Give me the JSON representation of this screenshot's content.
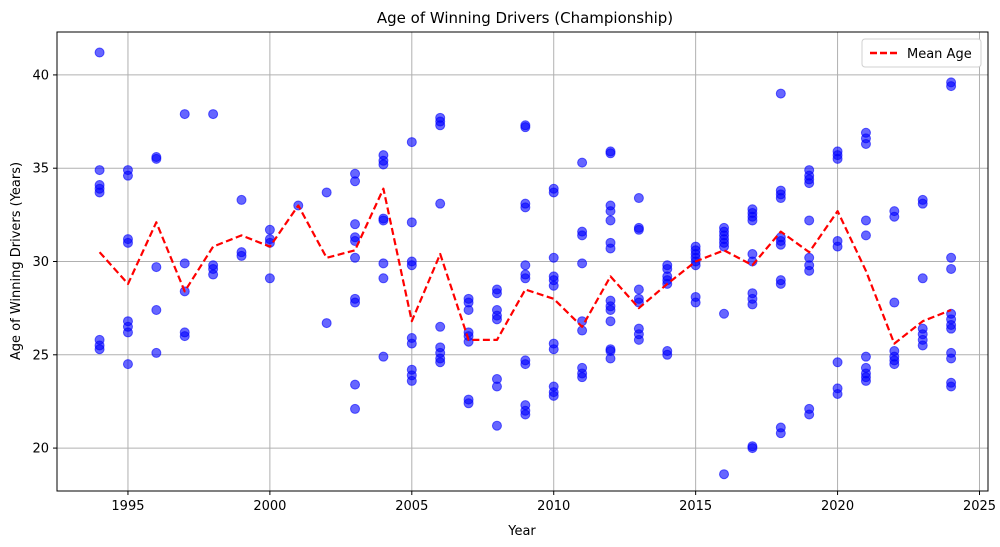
{
  "chart_data": {
    "type": "scatter",
    "title": "Age of Winning Drivers (Championship)",
    "xlabel": "Year",
    "ylabel": "Age of Winning Drivers (Years)",
    "xlim": [
      1992.5,
      2025.3
    ],
    "ylim": [
      17.7,
      42.3
    ],
    "xticks": [
      1995,
      2000,
      2005,
      2010,
      2015,
      2020,
      2025
    ],
    "yticks": [
      20,
      25,
      30,
      35,
      40
    ],
    "grid": true,
    "legend_position": "top-right",
    "colors": {
      "points": "#0000ff",
      "mean_line": "#ff0000",
      "grid": "#b0b0b0"
    },
    "series": [
      {
        "type": "scatter",
        "points": [
          [
            1994,
            41.2
          ],
          [
            1994,
            34.9
          ],
          [
            1994,
            34.1
          ],
          [
            1994,
            33.9
          ],
          [
            1994,
            33.7
          ],
          [
            1994,
            25.8
          ],
          [
            1994,
            25.5
          ],
          [
            1994,
            25.3
          ],
          [
            1995,
            34.9
          ],
          [
            1995,
            34.6
          ],
          [
            1995,
            31.2
          ],
          [
            1995,
            31.0
          ],
          [
            1995,
            26.8
          ],
          [
            1995,
            26.5
          ],
          [
            1995,
            26.2
          ],
          [
            1995,
            24.5
          ],
          [
            1996,
            35.6
          ],
          [
            1996,
            35.5
          ],
          [
            1996,
            29.7
          ],
          [
            1996,
            27.4
          ],
          [
            1996,
            25.1
          ],
          [
            1997,
            37.9
          ],
          [
            1997,
            29.9
          ],
          [
            1997,
            28.4
          ],
          [
            1997,
            26.2
          ],
          [
            1997,
            26.0
          ],
          [
            1998,
            37.9
          ],
          [
            1998,
            29.8
          ],
          [
            1998,
            29.6
          ],
          [
            1998,
            29.3
          ],
          [
            1999,
            33.3
          ],
          [
            1999,
            30.5
          ],
          [
            1999,
            30.3
          ],
          [
            2000,
            31.7
          ],
          [
            2000,
            31.2
          ],
          [
            2000,
            31.0
          ],
          [
            2000,
            29.1
          ],
          [
            2001,
            33.0
          ],
          [
            2002,
            33.7
          ],
          [
            2002,
            26.7
          ],
          [
            2003,
            34.7
          ],
          [
            2003,
            34.3
          ],
          [
            2003,
            32.0
          ],
          [
            2003,
            31.3
          ],
          [
            2003,
            31.1
          ],
          [
            2003,
            30.2
          ],
          [
            2003,
            28.0
          ],
          [
            2003,
            27.8
          ],
          [
            2003,
            23.4
          ],
          [
            2003,
            22.1
          ],
          [
            2004,
            35.7
          ],
          [
            2004,
            35.4
          ],
          [
            2004,
            35.2
          ],
          [
            2004,
            32.3
          ],
          [
            2004,
            32.2
          ],
          [
            2004,
            29.9
          ],
          [
            2004,
            29.1
          ],
          [
            2004,
            24.9
          ],
          [
            2005,
            36.4
          ],
          [
            2005,
            32.1
          ],
          [
            2005,
            30.0
          ],
          [
            2005,
            29.8
          ],
          [
            2005,
            25.9
          ],
          [
            2005,
            25.6
          ],
          [
            2005,
            24.2
          ],
          [
            2005,
            23.9
          ],
          [
            2005,
            23.6
          ],
          [
            2006,
            37.7
          ],
          [
            2006,
            37.5
          ],
          [
            2006,
            37.3
          ],
          [
            2006,
            33.1
          ],
          [
            2006,
            26.5
          ],
          [
            2006,
            25.4
          ],
          [
            2006,
            25.1
          ],
          [
            2006,
            24.8
          ],
          [
            2006,
            24.6
          ],
          [
            2007,
            28.0
          ],
          [
            2007,
            27.8
          ],
          [
            2007,
            27.4
          ],
          [
            2007,
            26.2
          ],
          [
            2007,
            26.0
          ],
          [
            2007,
            25.7
          ],
          [
            2007,
            22.6
          ],
          [
            2007,
            22.4
          ],
          [
            2008,
            28.5
          ],
          [
            2008,
            28.3
          ],
          [
            2008,
            27.4
          ],
          [
            2008,
            27.1
          ],
          [
            2008,
            26.9
          ],
          [
            2008,
            23.7
          ],
          [
            2008,
            23.3
          ],
          [
            2008,
            21.2
          ],
          [
            2009,
            37.3
          ],
          [
            2009,
            37.2
          ],
          [
            2009,
            33.1
          ],
          [
            2009,
            32.9
          ],
          [
            2009,
            29.8
          ],
          [
            2009,
            29.3
          ],
          [
            2009,
            29.1
          ],
          [
            2009,
            24.7
          ],
          [
            2009,
            24.5
          ],
          [
            2009,
            22.3
          ],
          [
            2009,
            22.0
          ],
          [
            2009,
            21.8
          ],
          [
            2010,
            33.9
          ],
          [
            2010,
            33.7
          ],
          [
            2010,
            30.2
          ],
          [
            2010,
            29.2
          ],
          [
            2010,
            29.0
          ],
          [
            2010,
            28.7
          ],
          [
            2010,
            25.6
          ],
          [
            2010,
            25.3
          ],
          [
            2010,
            23.3
          ],
          [
            2010,
            23.0
          ],
          [
            2010,
            22.8
          ],
          [
            2011,
            35.3
          ],
          [
            2011,
            31.6
          ],
          [
            2011,
            31.4
          ],
          [
            2011,
            29.9
          ],
          [
            2011,
            26.8
          ],
          [
            2011,
            26.3
          ],
          [
            2011,
            24.3
          ],
          [
            2011,
            24.0
          ],
          [
            2011,
            23.8
          ],
          [
            2012,
            35.9
          ],
          [
            2012,
            35.8
          ],
          [
            2012,
            33.0
          ],
          [
            2012,
            32.7
          ],
          [
            2012,
            32.2
          ],
          [
            2012,
            31.0
          ],
          [
            2012,
            30.7
          ],
          [
            2012,
            27.9
          ],
          [
            2012,
            27.6
          ],
          [
            2012,
            27.4
          ],
          [
            2012,
            26.8
          ],
          [
            2012,
            25.3
          ],
          [
            2012,
            25.2
          ],
          [
            2012,
            24.8
          ],
          [
            2013,
            33.4
          ],
          [
            2013,
            31.8
          ],
          [
            2013,
            31.7
          ],
          [
            2013,
            28.5
          ],
          [
            2013,
            28.0
          ],
          [
            2013,
            27.8
          ],
          [
            2013,
            26.4
          ],
          [
            2013,
            26.1
          ],
          [
            2013,
            25.8
          ],
          [
            2014,
            29.8
          ],
          [
            2014,
            29.6
          ],
          [
            2014,
            29.2
          ],
          [
            2014,
            29.0
          ],
          [
            2014,
            28.8
          ],
          [
            2014,
            25.2
          ],
          [
            2014,
            25.0
          ],
          [
            2015,
            30.8
          ],
          [
            2015,
            30.6
          ],
          [
            2015,
            30.4
          ],
          [
            2015,
            30.2
          ],
          [
            2015,
            30.0
          ],
          [
            2015,
            29.8
          ],
          [
            2015,
            28.1
          ],
          [
            2015,
            27.8
          ],
          [
            2016,
            31.8
          ],
          [
            2016,
            31.6
          ],
          [
            2016,
            31.4
          ],
          [
            2016,
            31.2
          ],
          [
            2016,
            31.0
          ],
          [
            2016,
            30.8
          ],
          [
            2016,
            27.2
          ],
          [
            2016,
            18.6
          ],
          [
            2017,
            32.8
          ],
          [
            2017,
            32.6
          ],
          [
            2017,
            32.4
          ],
          [
            2017,
            32.2
          ],
          [
            2017,
            30.4
          ],
          [
            2017,
            30.0
          ],
          [
            2017,
            28.3
          ],
          [
            2017,
            28.0
          ],
          [
            2017,
            27.7
          ],
          [
            2017,
            20.1
          ],
          [
            2017,
            20.0
          ],
          [
            2018,
            39.0
          ],
          [
            2018,
            33.8
          ],
          [
            2018,
            33.6
          ],
          [
            2018,
            33.4
          ],
          [
            2018,
            31.3
          ],
          [
            2018,
            31.1
          ],
          [
            2018,
            30.9
          ],
          [
            2018,
            29.0
          ],
          [
            2018,
            28.8
          ],
          [
            2018,
            21.1
          ],
          [
            2018,
            20.8
          ],
          [
            2019,
            34.9
          ],
          [
            2019,
            34.6
          ],
          [
            2019,
            34.4
          ],
          [
            2019,
            34.2
          ],
          [
            2019,
            32.2
          ],
          [
            2019,
            30.2
          ],
          [
            2019,
            29.8
          ],
          [
            2019,
            29.5
          ],
          [
            2019,
            22.1
          ],
          [
            2019,
            21.8
          ],
          [
            2020,
            35.9
          ],
          [
            2020,
            35.7
          ],
          [
            2020,
            35.5
          ],
          [
            2020,
            31.1
          ],
          [
            2020,
            30.8
          ],
          [
            2020,
            24.6
          ],
          [
            2020,
            23.2
          ],
          [
            2020,
            22.9
          ],
          [
            2021,
            36.9
          ],
          [
            2021,
            36.6
          ],
          [
            2021,
            36.3
          ],
          [
            2021,
            32.2
          ],
          [
            2021,
            31.4
          ],
          [
            2021,
            24.9
          ],
          [
            2021,
            24.3
          ],
          [
            2021,
            24.0
          ],
          [
            2021,
            23.8
          ],
          [
            2021,
            23.6
          ],
          [
            2022,
            32.7
          ],
          [
            2022,
            32.4
          ],
          [
            2022,
            27.8
          ],
          [
            2022,
            25.2
          ],
          [
            2022,
            24.9
          ],
          [
            2022,
            24.7
          ],
          [
            2022,
            24.5
          ],
          [
            2023,
            33.3
          ],
          [
            2023,
            33.1
          ],
          [
            2023,
            29.1
          ],
          [
            2023,
            26.4
          ],
          [
            2023,
            26.1
          ],
          [
            2023,
            25.8
          ],
          [
            2023,
            25.5
          ],
          [
            2024,
            39.6
          ],
          [
            2024,
            39.4
          ],
          [
            2024,
            30.2
          ],
          [
            2024,
            29.6
          ],
          [
            2024,
            27.2
          ],
          [
            2024,
            26.9
          ],
          [
            2024,
            26.6
          ],
          [
            2024,
            26.4
          ],
          [
            2024,
            25.1
          ],
          [
            2024,
            24.8
          ],
          [
            2024,
            23.5
          ],
          [
            2024,
            23.3
          ]
        ]
      },
      {
        "type": "line",
        "name": "Mean Age",
        "style": "dashed",
        "x": [
          1994,
          1995,
          1996,
          1997,
          1998,
          1999,
          2000,
          2001,
          2002,
          2003,
          2004,
          2005,
          2006,
          2007,
          2008,
          2009,
          2010,
          2011,
          2012,
          2013,
          2014,
          2015,
          2016,
          2017,
          2018,
          2019,
          2020,
          2021,
          2022,
          2023,
          2024
        ],
        "y": [
          30.5,
          28.8,
          32.1,
          28.4,
          30.8,
          31.4,
          30.8,
          33.0,
          30.2,
          30.6,
          33.9,
          26.8,
          30.4,
          25.8,
          25.8,
          28.5,
          28.0,
          26.5,
          29.2,
          27.5,
          28.8,
          30.0,
          30.6,
          29.8,
          31.6,
          30.5,
          32.7,
          29.5,
          25.6,
          26.8,
          27.4
        ]
      }
    ]
  }
}
